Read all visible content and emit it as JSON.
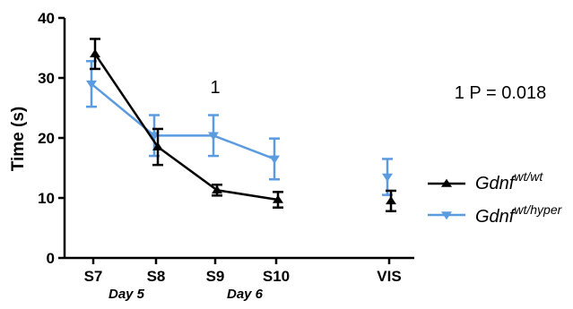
{
  "chart_data": {
    "type": "line",
    "ylabel": "Time (s)",
    "ylim": [
      0,
      40
    ],
    "yticks": [
      "0",
      "10",
      "20",
      "30",
      "40"
    ],
    "categories": [
      "S7",
      "S8",
      "S9",
      "S10",
      "VIS"
    ],
    "group_labels": [
      {
        "label": "Day 5",
        "spans": [
          "S7",
          "S8"
        ]
      },
      {
        "label": "Day 6",
        "spans": [
          "S9",
          "S10"
        ]
      }
    ],
    "series": [
      {
        "name_base": "Gdnf",
        "name_sup": "wt/wt",
        "color": "#000000",
        "marker": "triangle-up",
        "values": [
          34.0,
          18.5,
          11.3,
          9.7,
          9.5
        ],
        "errors": [
          2.5,
          3.0,
          0.9,
          1.3,
          1.7
        ],
        "connected_categories": [
          "S7",
          "S8",
          "S9",
          "S10"
        ]
      },
      {
        "name_base": "Gdnf",
        "name_sup": "wt/hyper",
        "color": "#5B9BE0",
        "marker": "triangle-down",
        "values": [
          29.0,
          20.4,
          20.4,
          16.5,
          13.5
        ],
        "errors": [
          3.8,
          3.4,
          3.4,
          3.4,
          3.0
        ],
        "connected_categories": [
          "S7",
          "S8",
          "S9",
          "S10"
        ]
      }
    ],
    "annotations": [
      {
        "text": "1",
        "category": "S9",
        "y": 28.5
      },
      {
        "text": "1 P = 0.018",
        "position": "top-right"
      }
    ],
    "legend_placement": "right",
    "grid": false
  }
}
